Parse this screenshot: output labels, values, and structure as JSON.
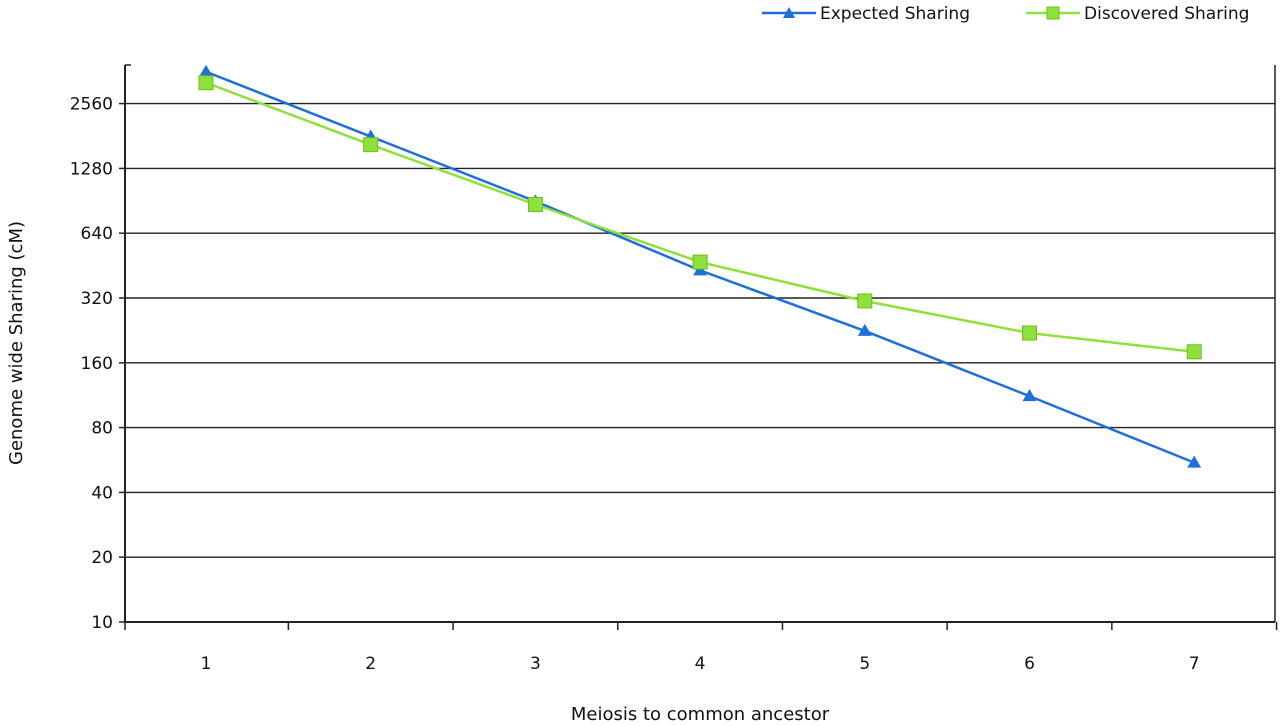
{
  "chart_data": {
    "type": "line",
    "x_scale": "linear",
    "y_scale": "log2",
    "xlabel": "Meiosis to common ancestor",
    "ylabel": "Genome wide Sharing (cM)",
    "categories": [
      "1",
      "2",
      "3",
      "4",
      "5",
      "6",
      "7"
    ],
    "x": [
      1,
      2,
      3,
      4,
      5,
      6,
      7
    ],
    "y_ticks": [
      10,
      20,
      40,
      80,
      160,
      320,
      640,
      1280,
      2560
    ],
    "y_tick_labels": [
      "10",
      "20",
      "40",
      "80",
      "160",
      "320",
      "640",
      "1280",
      "2560"
    ],
    "ylim": [
      10,
      4500
    ],
    "grid": true,
    "legend_position": "top-right",
    "series": [
      {
        "name": "Expected Sharing",
        "color": "#1f6fd9",
        "marker": "triangle",
        "values": [
          3600,
          1800,
          900,
          430,
          225,
          112,
          55
        ]
      },
      {
        "name": "Discovered Sharing",
        "color": "#8fe03a",
        "marker": "square",
        "values": [
          3200,
          1650,
          870,
          470,
          310,
          220,
          180
        ]
      }
    ]
  }
}
